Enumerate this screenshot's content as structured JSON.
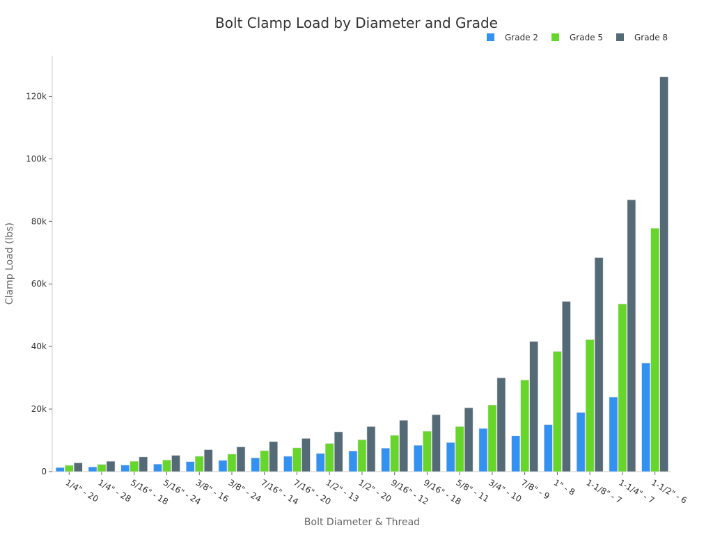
{
  "chart_data": {
    "type": "bar",
    "title": "Bolt Clamp Load by Diameter and Grade",
    "xlabel": "Bolt Diameter & Thread",
    "ylabel": "Clamp Load (lbs)",
    "ylim": [
      0,
      133000
    ],
    "yticks": [
      0,
      20000,
      40000,
      60000,
      80000,
      100000,
      120000
    ],
    "ytick_labels": [
      "0",
      "20k",
      "40k",
      "60k",
      "80k",
      "100k",
      "120k"
    ],
    "grid": false,
    "legend_position": "top-right",
    "categories": [
      "1/4\" - 20",
      "1/4\" - 28",
      "5/16\" - 18",
      "5/16\" - 24",
      "3/8\" - 16",
      "3/8\" - 24",
      "7/16\" - 14",
      "7/16\" - 20",
      "1/2\" - 13",
      "1/2\" - 20",
      "9/16\" - 12",
      "9/16\" - 18",
      "5/8\" - 11",
      "3/4\" - 10",
      "7/8\" - 9",
      "1\" - 8",
      "1-1/8\" - 7",
      "1-1/4\" - 7",
      "1-1/2\" - 6"
    ],
    "series": [
      {
        "name": "Grade 2",
        "color": "#3391f2",
        "values": [
          1300,
          1500,
          2100,
          2400,
          3200,
          3600,
          4400,
          4900,
          5800,
          6600,
          7500,
          8400,
          9300,
          13800,
          11400,
          15000,
          18900,
          23800,
          34700
        ]
      },
      {
        "name": "Grade 5",
        "color": "#66d62a",
        "values": [
          2000,
          2300,
          3300,
          3700,
          4900,
          5600,
          6700,
          7600,
          9000,
          10200,
          11600,
          12900,
          14400,
          21300,
          29300,
          38400,
          42200,
          53600,
          77800
        ]
      },
      {
        "name": "Grade 8",
        "color": "#546a76",
        "values": [
          2800,
          3300,
          4700,
          5200,
          7000,
          7900,
          9600,
          10600,
          12700,
          14400,
          16400,
          18200,
          20400,
          30000,
          41600,
          54400,
          68400,
          86900,
          126200
        ]
      }
    ]
  }
}
